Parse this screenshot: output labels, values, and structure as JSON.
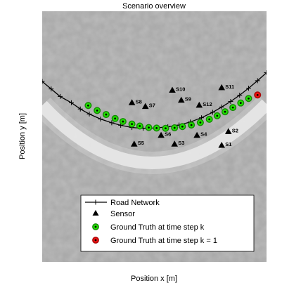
{
  "chart_data": {
    "type": "scatter",
    "title": "Scenario overview",
    "xlabel": "Position x [m]",
    "ylabel": "Position y [m]",
    "xlim": [
      0,
      100
    ],
    "ylim": [
      0,
      100
    ],
    "grid": false,
    "legend_location": "bottom-right",
    "colors": {
      "road": "#000000",
      "sensor": "#000000",
      "ground_truth": "#22e000",
      "ground_truth_first": "#ee1111"
    },
    "series": [
      {
        "name": "Road Network",
        "kind": "line",
        "x": [
          0,
          4,
          8,
          13,
          17,
          21,
          26,
          31,
          35,
          40,
          45,
          50,
          56,
          61,
          66,
          71,
          76,
          80,
          84,
          88,
          92,
          96,
          100
        ],
        "y": [
          72,
          69,
          66,
          63.5,
          61,
          59,
          57,
          55.5,
          54.5,
          53.6,
          53.3,
          53.4,
          53.9,
          54.6,
          55.8,
          57.5,
          59.7,
          61.8,
          64,
          66.5,
          69.3,
          72.3,
          75.5
        ]
      },
      {
        "name": "Sensor",
        "kind": "marker",
        "labels": [
          "S1",
          "S2",
          "S3",
          "S4",
          "S5",
          "S6",
          "S7",
          "S8",
          "S9",
          "S10",
          "S11",
          "S12"
        ],
        "x": [
          80,
          83,
          59,
          69,
          41,
          53,
          46,
          40,
          62,
          58,
          80,
          70
        ],
        "y": [
          46.5,
          52,
          47,
          50.5,
          47,
          50.5,
          62,
          63.5,
          64.5,
          68.5,
          69.5,
          62.5
        ]
      },
      {
        "name": "Ground Truth at time step k",
        "kind": "marker",
        "x": [
          20.5,
          24.5,
          28.5,
          32.5,
          36,
          40,
          43.5,
          47.5,
          51,
          55,
          59,
          62.5,
          66.5,
          70.5,
          74.5,
          78,
          81.5,
          85,
          88.5,
          92
        ],
        "y": [
          62.4,
          60.4,
          58.8,
          57.2,
          56,
          55,
          54.2,
          53.6,
          53.4,
          53.3,
          53.5,
          54,
          54.6,
          55.6,
          56.9,
          58.3,
          59.9,
          61.6,
          63.4,
          65.2
        ]
      },
      {
        "name": "Ground Truth at time step k = 1",
        "kind": "marker",
        "x": [
          96
        ],
        "y": [
          66.6
        ]
      }
    ]
  }
}
